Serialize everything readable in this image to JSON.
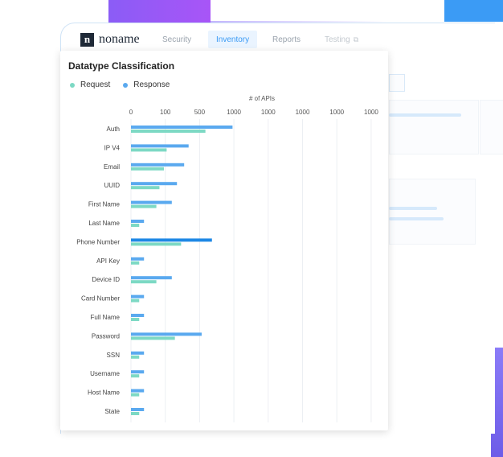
{
  "nav": {
    "tabs": [
      "Security",
      "Inventory",
      "Reports",
      "Testing"
    ],
    "active_tab": "Inventory",
    "testing_icon": "external-link-icon"
  },
  "card": {
    "title": "Datatype Classification",
    "legend": [
      {
        "label": "Request",
        "color": "#7dd9c4"
      },
      {
        "label": "Response",
        "color": "#5aa9ef"
      }
    ]
  },
  "chart_data": {
    "type": "bar",
    "orientation": "horizontal",
    "title": "Datatype Classification",
    "xlabel": "# of APIs",
    "xticks": [
      "0",
      "100",
      "500",
      "1000",
      "1000",
      "1000",
      "1000",
      "1000"
    ],
    "grid": true,
    "legend_position": "top-left",
    "categories": [
      "Auth",
      "IP V4",
      "Email",
      "UUID",
      "First Name",
      "Last Name",
      "Phone Number",
      "API Key",
      "Device ID",
      "Card Number",
      "Full Name",
      "Password",
      "SSN",
      "Username",
      "Host Name",
      "State"
    ],
    "series": [
      {
        "name": "Response",
        "color": "#5aa9ef",
        "values": [
          2.96,
          1.68,
          1.55,
          1.34,
          1.19,
          0.38,
          2.36,
          0.38,
          1.19,
          0.38,
          0.38,
          2.06,
          0.38,
          0.38,
          0.38,
          0.38
        ]
      },
      {
        "name": "Request",
        "color": "#7dd9c4",
        "values": [
          2.17,
          1.04,
          0.96,
          0.83,
          0.74,
          0.24,
          1.46,
          0.24,
          0.74,
          0.24,
          0.24,
          1.28,
          0.24,
          0.24,
          0.24,
          0.24
        ]
      }
    ],
    "highlight": {
      "category": "Phone Number",
      "series": "Response",
      "color": "#1e88e5"
    },
    "x_scale_note": "values in tick-interval units"
  }
}
